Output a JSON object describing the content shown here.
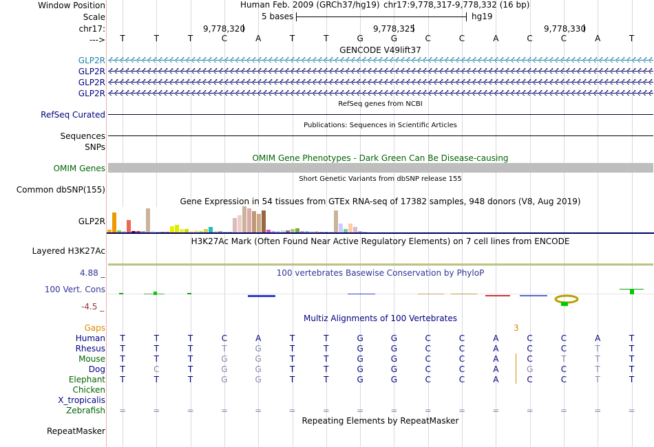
{
  "colors": {
    "navy": "#000080",
    "purple": "#333399",
    "green": "#006400",
    "gap": "#dd8800",
    "phylo_max": "#333399",
    "phylo_min": "#993333"
  },
  "header": {
    "labels": [
      "Window Position",
      "Scale",
      "chr17:",
      "--->"
    ],
    "assembly": "Human Feb. 2009 (GRCh37/hg19)",
    "position": "chr17:9,778,317-9,778,332 (16 bp)",
    "scale_text": "5 bases",
    "scale_db": "hg19",
    "ticks": [
      "9,778,320",
      "9,778,325",
      "9,778,330"
    ]
  },
  "sequence": [
    "T",
    "T",
    "T",
    "C",
    "A",
    "T",
    "T",
    "G",
    "G",
    "C",
    "C",
    "A",
    "C",
    "C",
    "A",
    "T"
  ],
  "gencode": {
    "title": "GENCODE V49lift37",
    "genes": [
      "GLP2R",
      "GLP2R",
      "GLP2R",
      "GLP2R"
    ]
  },
  "refseq": {
    "label": "RefSeq Curated",
    "title": "RefSeq genes from NCBI"
  },
  "pubs": {
    "label": "Sequences",
    "title": "Publications: Sequences in Scientific Articles"
  },
  "snps_label": "SNPs",
  "omim": {
    "title": "OMIM Gene Phenotypes - Dark Green Can Be Disease-causing",
    "label": "OMIM Genes"
  },
  "dbsnp": {
    "title": "Short Genetic Variants from dbSNP release 155",
    "label": "Common dbSNP(155)"
  },
  "gtex": {
    "title": "Gene Expression in 54 tissues from GTEx RNA-seq of 17382 samples, 948 donors (V8, Aug 2019)",
    "label": "GLP2R",
    "bars": [
      {
        "v": 0.1,
        "c": "#ffaa00"
      },
      {
        "v": 0.75,
        "c": "#ee9900"
      },
      {
        "v": 0.08,
        "c": "#8bc34a"
      },
      {
        "v": 0.05,
        "c": "#ccbbee"
      },
      {
        "v": 0.47,
        "c": "#ee6655"
      },
      {
        "v": 0.06,
        "c": "#660066"
      },
      {
        "v": 0.04,
        "c": "#cc3333"
      },
      {
        "v": 0.05,
        "c": "#99aacc"
      },
      {
        "v": 0.93,
        "c": "#cbb39b"
      },
      {
        "v": 0.05,
        "c": "#dddddd"
      },
      {
        "v": 0.03,
        "c": "#bbbbbb"
      },
      {
        "v": 0.03,
        "c": "#999999"
      },
      {
        "v": 0.02,
        "c": "#cc8866"
      },
      {
        "v": 0.23,
        "c": "#eeee00"
      },
      {
        "v": 0.28,
        "c": "#ddee00"
      },
      {
        "v": 0.13,
        "c": "#eeee44"
      },
      {
        "v": 0.13,
        "c": "#ccdd00"
      },
      {
        "v": 0.06,
        "c": "#eeeeaa"
      },
      {
        "v": 0.08,
        "c": "#ffdd99"
      },
      {
        "v": 0.06,
        "c": "#aaee55"
      },
      {
        "v": 0.13,
        "c": "#ddcc55"
      },
      {
        "v": 0.22,
        "c": "#22bbbb"
      },
      {
        "v": 0.05,
        "c": "#ccddaa"
      },
      {
        "v": 0.04,
        "c": "#aaaaaa"
      },
      {
        "v": 0.02,
        "c": "#bbcc99"
      },
      {
        "v": 0.03,
        "c": "#99bbcc"
      },
      {
        "v": 0.55,
        "c": "#ddbbbb"
      },
      {
        "v": 0.65,
        "c": "#eecccc"
      },
      {
        "v": 1.0,
        "c": "#cbb39b"
      },
      {
        "v": 0.92,
        "c": "#ddaaaa"
      },
      {
        "v": 0.82,
        "c": "#bb9977"
      },
      {
        "v": 0.7,
        "c": "#ccaa88"
      },
      {
        "v": 0.85,
        "c": "#996644"
      },
      {
        "v": 0.1,
        "c": "#cc55cc"
      },
      {
        "v": 0.05,
        "c": "#aaaaff"
      },
      {
        "v": 0.05,
        "c": "#ccccee"
      },
      {
        "v": 0.07,
        "c": "#bbeebb"
      },
      {
        "v": 0.07,
        "c": "#aa66aa"
      },
      {
        "v": 0.12,
        "c": "#aacc66"
      },
      {
        "v": 0.15,
        "c": "#77aa44"
      },
      {
        "v": 0.05,
        "c": "#cc99cc"
      },
      {
        "v": 0.05,
        "c": "#99cccc"
      },
      {
        "v": 0.05,
        "c": "#dddddd"
      },
      {
        "v": 0.04,
        "c": "#ccccaa"
      },
      {
        "v": 0.03,
        "c": "#bbaacc"
      },
      {
        "v": 0.03,
        "c": "#aaaaaa"
      },
      {
        "v": 0.02,
        "c": "#cccccc"
      },
      {
        "v": 0.85,
        "c": "#cbb39b"
      },
      {
        "v": 0.35,
        "c": "#ccccff"
      },
      {
        "v": 0.12,
        "c": "#77cc99"
      },
      {
        "v": 0.35,
        "c": "#ffccaa"
      },
      {
        "v": 0.22,
        "c": "#ddbbcc"
      },
      {
        "v": 0.04,
        "c": "#aabbcc"
      },
      {
        "v": 0.03,
        "c": "#cccccc"
      }
    ]
  },
  "h3k27": {
    "title": "H3K27Ac Mark (Often Found Near Active Regulatory Elements) on 7 cell lines from ENCODE",
    "label": "Layered H3K27Ac"
  },
  "phylop": {
    "title": "100 vertebrates Basewise Conservation by PhyloP",
    "label": "100 Vert. Cons",
    "max": "4.88 _",
    "min": "-4.5 _"
  },
  "multiz": {
    "title": "Multiz Alignments of 100 Vertebrates",
    "gaps_label": "Gaps",
    "gap_count": "3",
    "species": [
      {
        "name": "Human",
        "color": "#000080",
        "bases": [
          "T",
          "T",
          "T",
          "C",
          "A",
          "T",
          "T",
          "G",
          "G",
          "C",
          "C",
          "A",
          "C",
          "C",
          "A",
          "T"
        ],
        "dim": []
      },
      {
        "name": "Rhesus",
        "color": "#000080",
        "bases": [
          "T",
          "T",
          "T",
          "T",
          "G",
          "T",
          "T",
          "G",
          "G",
          "C",
          "C",
          "A",
          "C",
          "C",
          "T",
          "T"
        ],
        "dim": [
          3,
          4,
          14
        ]
      },
      {
        "name": "Mouse",
        "color": "#006400",
        "bases": [
          "T",
          "T",
          "T",
          "G",
          "G",
          "T",
          "T",
          "G",
          "G",
          "C",
          "C",
          "A",
          "C",
          "T",
          "T",
          "T"
        ],
        "dim": [
          3,
          4,
          13,
          14
        ]
      },
      {
        "name": "Dog",
        "color": "#000080",
        "bases": [
          "T",
          "C",
          "T",
          "G",
          "G",
          "T",
          "T",
          "G",
          "G",
          "C",
          "C",
          "A",
          "G",
          "C",
          "T",
          "T"
        ],
        "dim": [
          1,
          3,
          4,
          12,
          14
        ]
      },
      {
        "name": "Elephant",
        "color": "#006400",
        "bases": [
          "T",
          "T",
          "T",
          "G",
          "G",
          "T",
          "T",
          "G",
          "G",
          "C",
          "C",
          "A",
          "C",
          "C",
          "T",
          "T"
        ],
        "dim": [
          3,
          4,
          14
        ]
      },
      {
        "name": "Chicken",
        "color": "#006400",
        "bases": [],
        "dim": []
      },
      {
        "name": "X_tropicalis",
        "color": "#000080",
        "bases": [],
        "dim": []
      },
      {
        "name": "Zebrafish",
        "color": "#006400",
        "bases": [
          "=",
          "=",
          "=",
          "=",
          "=",
          "=",
          "=",
          "=",
          "=",
          "=",
          "=",
          "=",
          "=",
          "=",
          "=",
          "="
        ],
        "dim": []
      }
    ]
  },
  "repeatmasker": {
    "title": "Repeating Elements by RepeatMasker",
    "label": "RepeatMasker"
  }
}
